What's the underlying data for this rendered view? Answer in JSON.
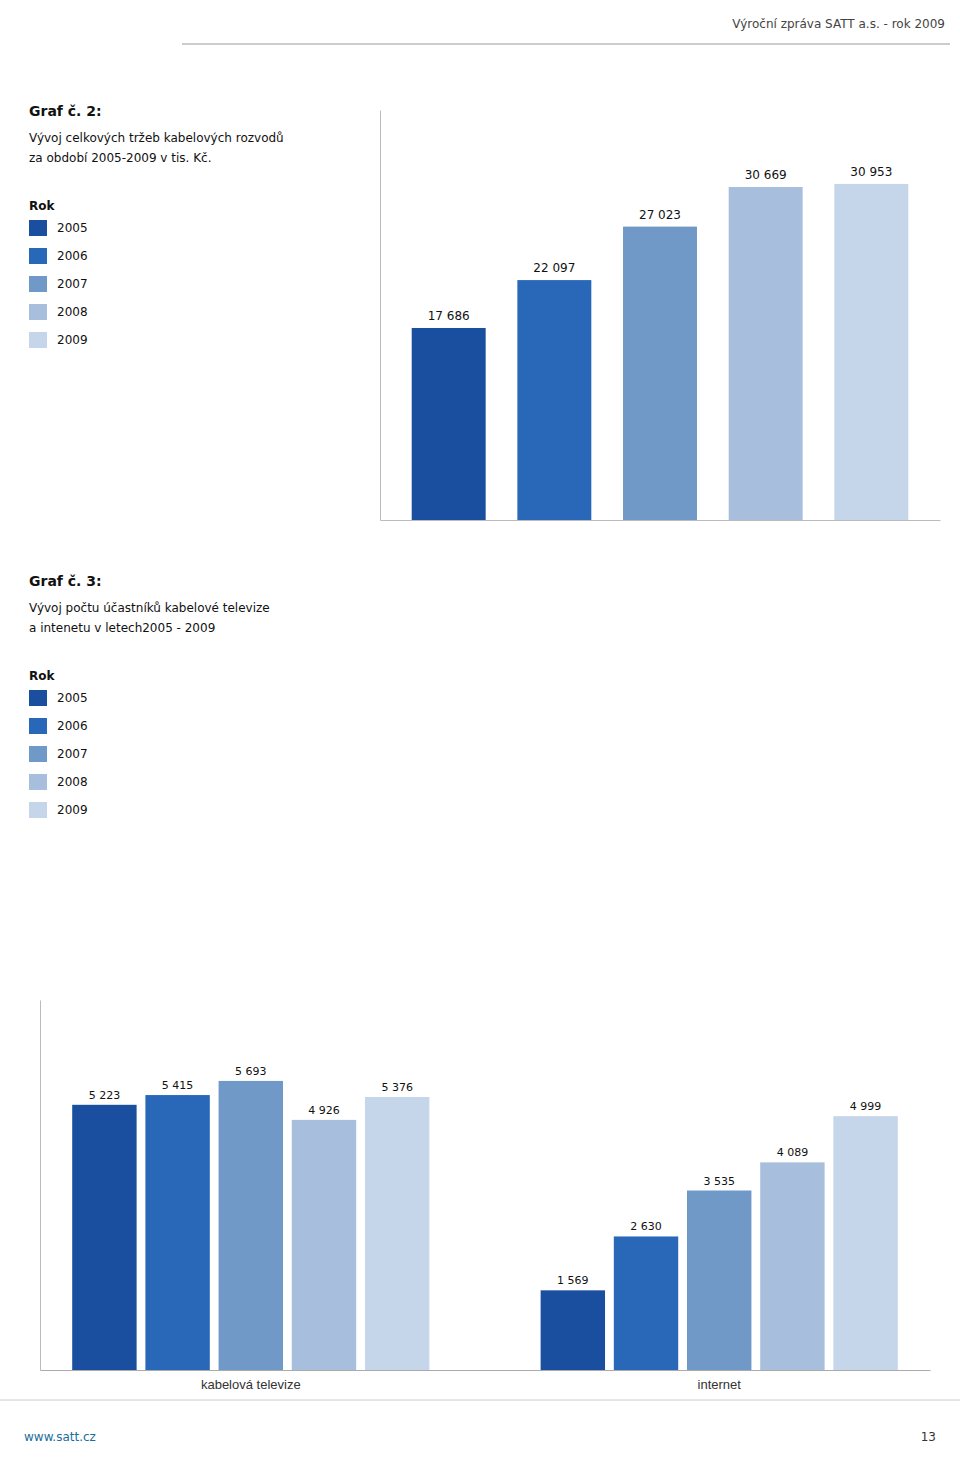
{
  "header_text": "Výroční zpráva SATT a.s. - rok 2009",
  "footer_text": "www.satt.cz",
  "page_number": "13",
  "chart_data": [
    {
      "type": "bar",
      "title": "Graf č. 2:",
      "subtitle": [
        "Vývoj celkových tržeb kabelových rozvodů",
        "za období 2005-2009 v tis. Kč."
      ],
      "legend_title": "Rok",
      "legend": "left",
      "categories": [
        "2005",
        "2006",
        "2007",
        "2008",
        "2009"
      ],
      "values": [
        17686,
        22097,
        27023,
        30669,
        30953
      ],
      "value_labels": [
        "17 686",
        "22 097",
        "27 023",
        "30 669",
        "30 953"
      ],
      "colors": [
        "#1a4f9f",
        "#2968b8",
        "#7099c8",
        "#a8bedd",
        "#c5d5ea"
      ],
      "ylim": [
        0,
        37762.66
      ],
      "data_labels": true,
      "tick_labels": false
    },
    {
      "type": "bar",
      "title": "Graf č. 3:",
      "subtitle": [
        "Vývoj počtu účastníků kabelové televize",
        "a intenetu v letech2005 - 2009"
      ],
      "legend_title": "Rok",
      "legend": "left",
      "categories": [
        "kabelová televize",
        "internet"
      ],
      "series": [
        {
          "name": "2005",
          "color": "#1a4f9f",
          "values": [
            5223,
            1569
          ],
          "value_labels": [
            "5 223",
            "1 569"
          ]
        },
        {
          "name": "2006",
          "color": "#2968b8",
          "values": [
            5415,
            2630
          ],
          "value_labels": [
            "5 415",
            "2 630"
          ]
        },
        {
          "name": "2007",
          "color": "#7099c8",
          "values": [
            5693,
            3535
          ],
          "value_labels": [
            "5 693",
            "3 535"
          ]
        },
        {
          "name": "2008",
          "color": "#a8bedd",
          "values": [
            4926,
            4089
          ],
          "value_labels": [
            "4 926",
            "4 089"
          ]
        },
        {
          "name": "2009",
          "color": "#c5d5ea",
          "values": [
            5376,
            4999
          ],
          "value_labels": [
            "5 376",
            "4 999"
          ]
        }
      ],
      "ylim": [
        0,
        7287.04
      ],
      "data_labels": true,
      "tick_labels": "x"
    }
  ]
}
